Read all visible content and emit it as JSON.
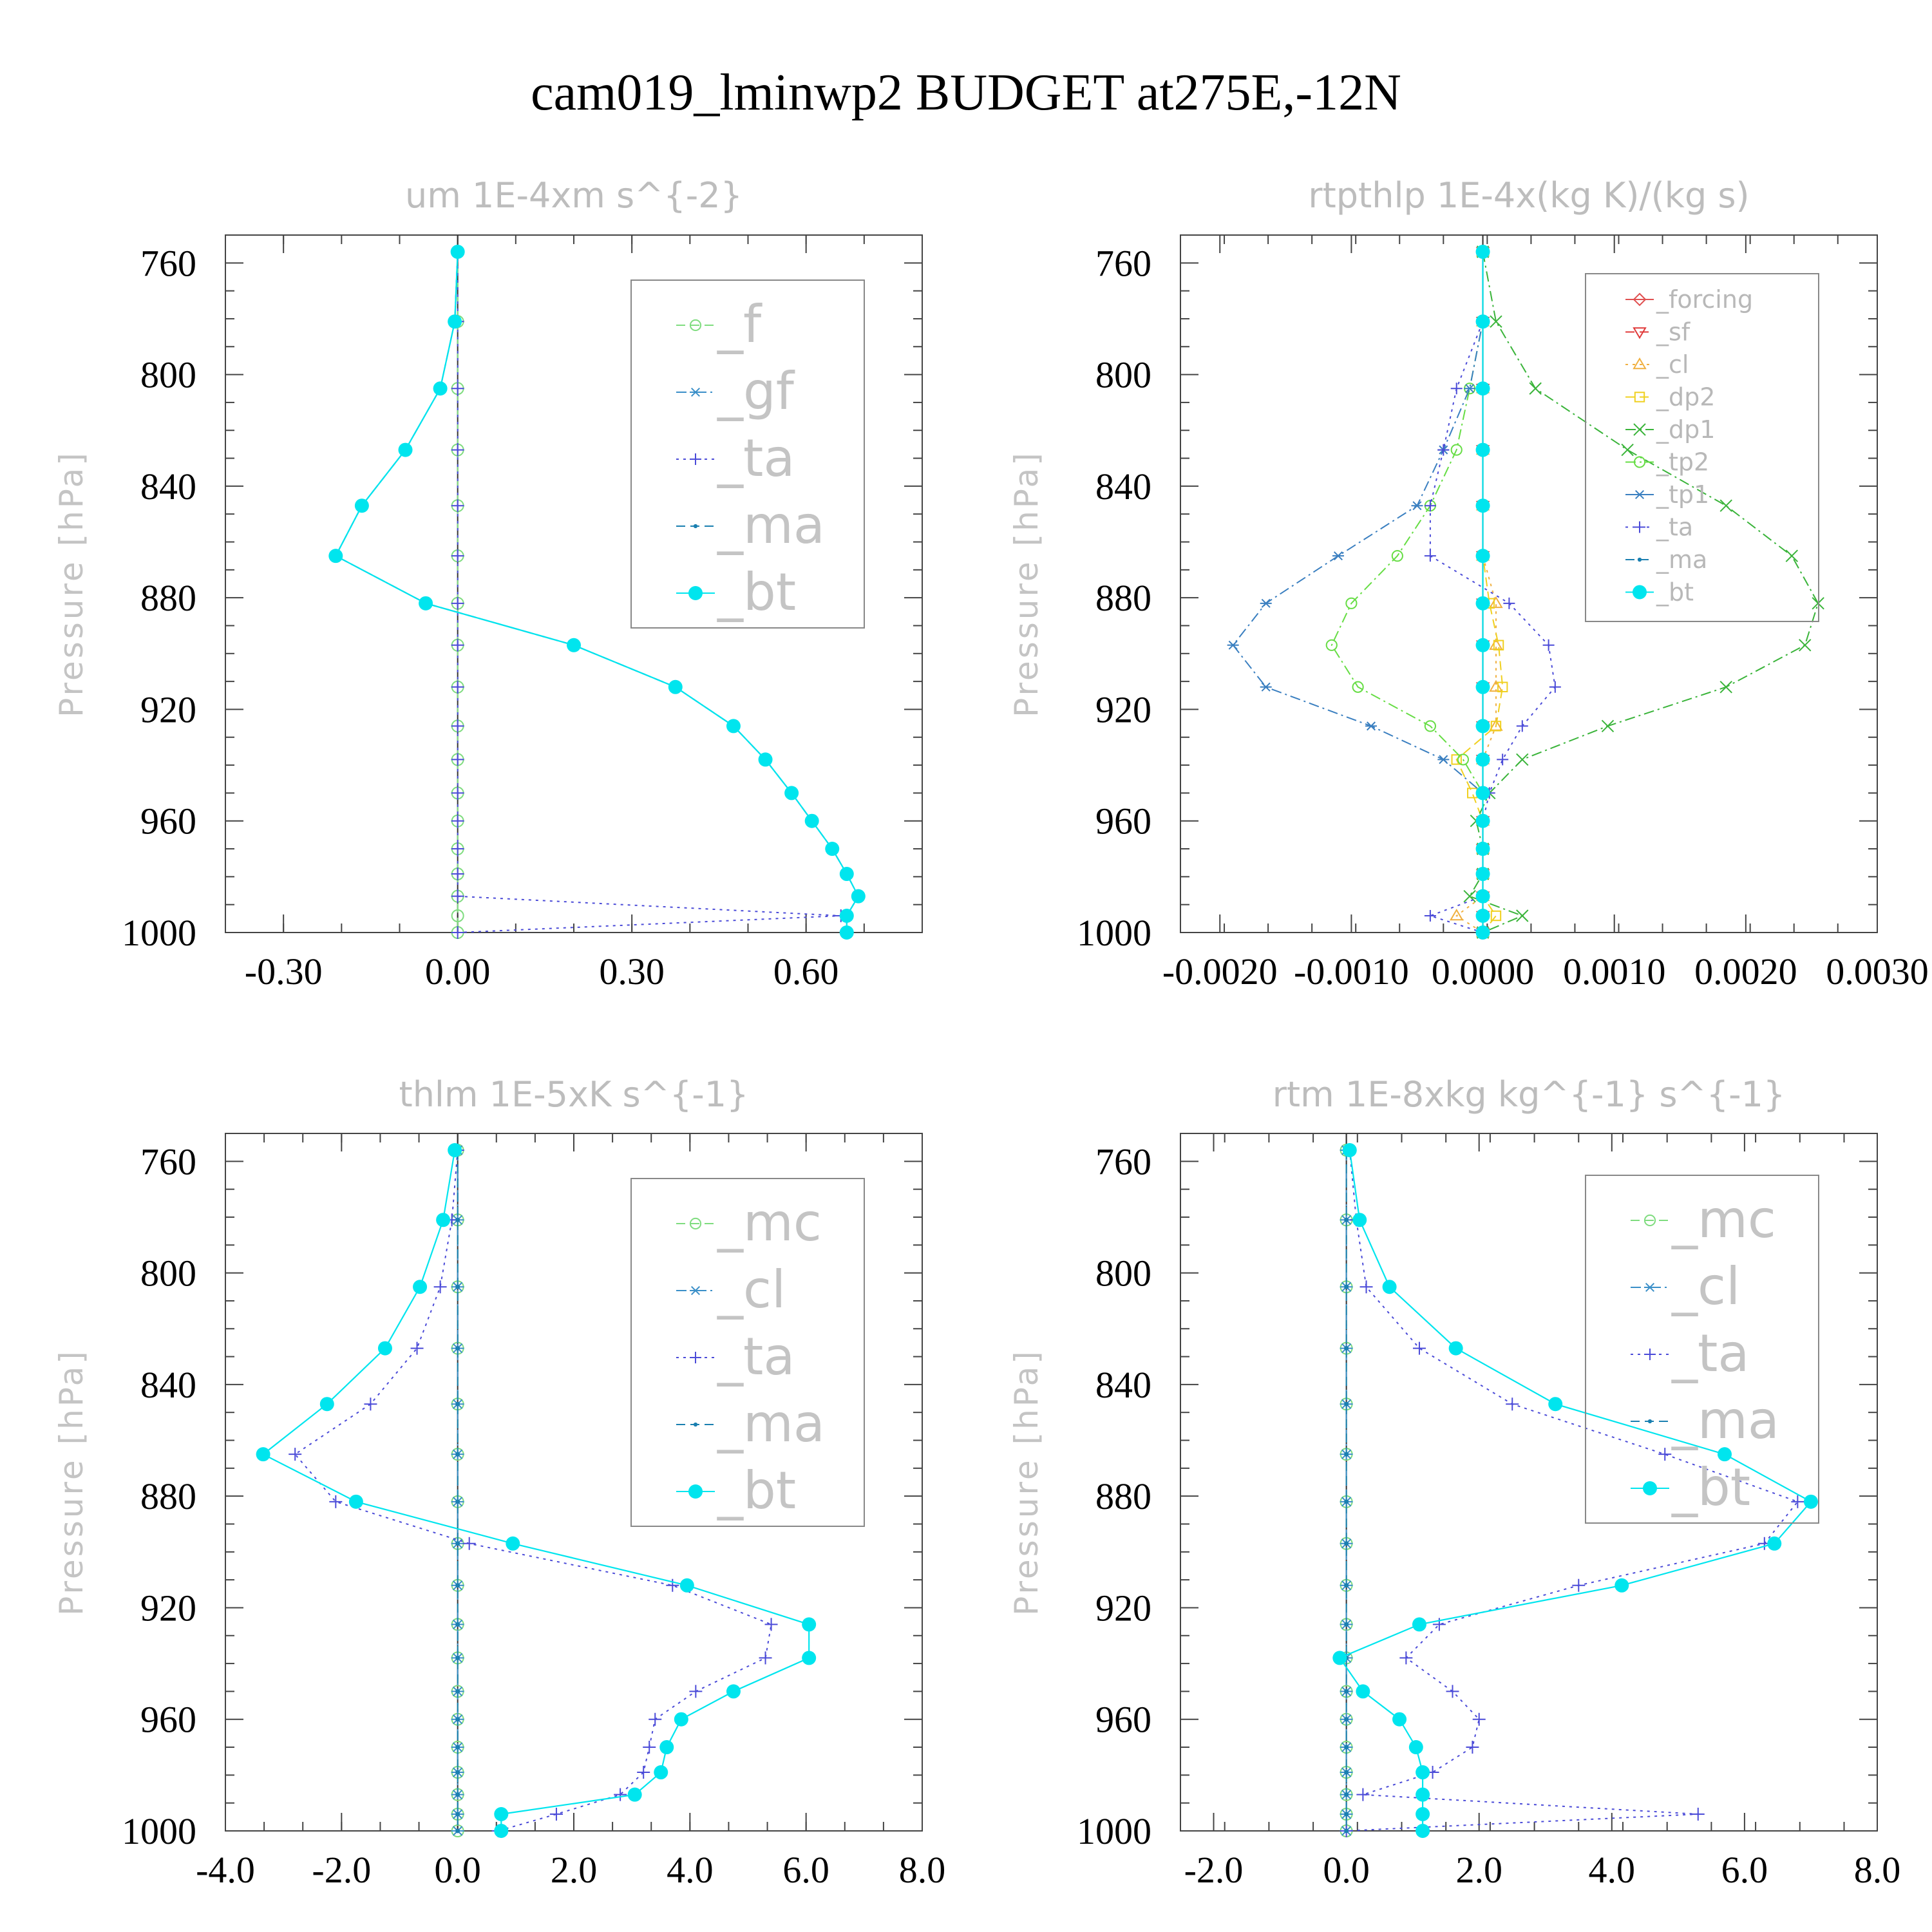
{
  "figure": {
    "title": "cam019_lminwp2  BUDGET at275E,-12N"
  },
  "colors": {
    "_f": "#7fdc7f",
    "_gf": "#3a8fc8",
    "_ta": "#4b4bd8",
    "_ma": "#1a7fb0",
    "_bt": "#00e5ee",
    "_mc": "#7fdc7f",
    "_cl_thermo": "#3a8fc8",
    "_forcing": "#e05050",
    "_sf": "#e03a3a",
    "_cl": "#f0b040",
    "_dp2": "#f0d020",
    "_dp1": "#3ab43a",
    "_tp2": "#66dd44",
    "_tp1": "#3a7fc0"
  },
  "chart_data": [
    {
      "id": "um",
      "type": "line",
      "title": "um   1E-4xm s^{-2}",
      "ylabel": "Pressure [hPa]",
      "xlim": [
        -0.4,
        0.8
      ],
      "ylim": [
        1000,
        750
      ],
      "xticks": [
        -0.3,
        0.0,
        0.3,
        0.6
      ],
      "xtick_labels": [
        "-0.30",
        "0.00",
        "0.30",
        "0.60"
      ],
      "yticks": [
        760,
        800,
        840,
        880,
        920,
        960,
        1000
      ],
      "ytick_labels": [
        "760",
        "800",
        "840",
        "880",
        "920",
        "960",
        "1000"
      ],
      "legend_position": "top-right",
      "levels": [
        756,
        781,
        805,
        827,
        847,
        865,
        882,
        897,
        912,
        926,
        938,
        950,
        960,
        970,
        979,
        987,
        994,
        1000
      ],
      "series": [
        {
          "name": "_f",
          "marker": "circle-open",
          "dash": "dash",
          "values": [
            0,
            0,
            0,
            0,
            0,
            0,
            0,
            0,
            0,
            0,
            0,
            0,
            0,
            0,
            0,
            0,
            0,
            0
          ]
        },
        {
          "name": "_gf",
          "marker": "star",
          "dash": "dashdot",
          "values": [
            0,
            -0.005,
            -0.03,
            -0.09,
            -0.165,
            -0.21,
            -0.055,
            0.2,
            0.375,
            0.475,
            0.53,
            0.575,
            0.61,
            0.645,
            0.67,
            0.69,
            0.67,
            0.67
          ]
        },
        {
          "name": "_ta",
          "marker": "plus",
          "dash": "dot",
          "values": [
            0,
            0,
            0,
            0,
            0,
            0,
            0,
            0,
            0,
            0,
            0,
            0,
            0,
            0,
            0,
            0,
            0.66,
            0
          ]
        },
        {
          "name": "_ma",
          "marker": "dot",
          "dash": "dash",
          "values": [
            0,
            -0.005,
            -0.03,
            -0.09,
            -0.165,
            -0.21,
            -0.055,
            0.2,
            0.375,
            0.475,
            0.53,
            0.575,
            0.61,
            0.645,
            0.67,
            0.69,
            0.67,
            0.67
          ]
        },
        {
          "name": "_bt",
          "marker": "circle-filled",
          "dash": "solid",
          "values": [
            0,
            -0.005,
            -0.03,
            -0.09,
            -0.165,
            -0.21,
            -0.055,
            0.2,
            0.375,
            0.475,
            0.53,
            0.575,
            0.61,
            0.645,
            0.67,
            0.69,
            0.67,
            0.67
          ]
        }
      ]
    },
    {
      "id": "rtpthlp",
      "type": "line",
      "title": "rtpthlp   1E-4x(kg K)/(kg s)",
      "ylabel": "Pressure [hPa]",
      "xlim": [
        -0.0023,
        0.003
      ],
      "ylim": [
        1000,
        750
      ],
      "xticks": [
        -0.002,
        -0.001,
        0.0,
        0.001,
        0.002,
        0.003
      ],
      "xtick_labels": [
        "-0.0020",
        "-0.0010",
        "0.0000",
        "0.0010",
        "0.0020",
        "0.0030"
      ],
      "yticks": [
        760,
        800,
        840,
        880,
        920,
        960,
        1000
      ],
      "ytick_labels": [
        "760",
        "800",
        "840",
        "880",
        "920",
        "960",
        "1000"
      ],
      "legend_position": "top-right",
      "levels": [
        756,
        781,
        805,
        827,
        847,
        865,
        882,
        897,
        912,
        926,
        938,
        950,
        960,
        970,
        979,
        987,
        994,
        1000
      ],
      "series": [
        {
          "name": "_forcing",
          "marker": "diamond",
          "dash": "solid",
          "values": [
            0,
            0,
            0,
            0,
            0,
            0,
            0,
            0,
            0,
            0,
            0,
            0,
            0,
            0,
            0,
            0,
            0,
            0
          ]
        },
        {
          "name": "_sf",
          "marker": "triangle-down",
          "dash": "dash",
          "values": [
            0,
            0,
            0,
            0,
            0,
            0,
            0,
            0,
            0,
            0,
            0,
            0,
            0,
            0,
            0,
            0,
            0,
            0
          ]
        },
        {
          "name": "_cl",
          "marker": "triangle-up",
          "dash": "dot",
          "values": [
            0,
            0,
            0,
            0,
            0,
            0,
            0.0001,
            0.0001,
            0.0001,
            0.0001,
            0,
            0,
            0,
            0,
            0,
            0,
            -0.0002,
            0
          ]
        },
        {
          "name": "_dp2",
          "marker": "square-open",
          "dash": "dash",
          "values": [
            0,
            0,
            0,
            0,
            0,
            0,
            5e-05,
            0.00012,
            0.00015,
            0.0001,
            -0.0002,
            -8e-05,
            0,
            0,
            0,
            0,
            0.0001,
            0
          ]
        },
        {
          "name": "_dp1",
          "marker": "x",
          "dash": "dashdot",
          "values": [
            0,
            0.0001,
            0.0004,
            0.0011,
            0.00185,
            0.00235,
            0.00255,
            0.00245,
            0.00185,
            0.00095,
            0.0003,
            5e-05,
            -5e-05,
            0,
            0,
            -0.0001,
            0.0003,
            0
          ]
        },
        {
          "name": "_tp2",
          "marker": "circle-open",
          "dash": "dashdot",
          "values": [
            0,
            0,
            -0.0001,
            -0.0002,
            -0.0004,
            -0.00065,
            -0.001,
            -0.00115,
            -0.00095,
            -0.0004,
            -0.00015,
            0,
            0,
            0,
            0,
            0,
            0,
            0
          ]
        },
        {
          "name": "_tp1",
          "marker": "star",
          "dash": "dashdot",
          "values": [
            0,
            0,
            -0.0001,
            -0.0003,
            -0.0005,
            -0.0011,
            -0.00165,
            -0.0019,
            -0.00165,
            -0.00085,
            -0.0003,
            0,
            0,
            0,
            0,
            0,
            0,
            0
          ]
        },
        {
          "name": "_ta",
          "marker": "plus",
          "dash": "dot",
          "values": [
            0,
            0,
            -0.0002,
            -0.0003,
            -0.0004,
            -0.0004,
            0.0002,
            0.0005,
            0.00055,
            0.0003,
            0.00015,
            5e-05,
            0,
            0,
            0,
            0,
            -0.0004,
            0
          ]
        },
        {
          "name": "_ma",
          "marker": "dot",
          "dash": "dash",
          "values": [
            0,
            0,
            0,
            0,
            0,
            0,
            0,
            0,
            0,
            0,
            0,
            0,
            0,
            0,
            0,
            0,
            0,
            0
          ]
        },
        {
          "name": "_bt",
          "marker": "circle-filled",
          "dash": "solid",
          "values": [
            0,
            0,
            0,
            0,
            0,
            0,
            0,
            0,
            0,
            0,
            0,
            0,
            0,
            0,
            0,
            0,
            0,
            0
          ]
        }
      ]
    },
    {
      "id": "thlm",
      "type": "line",
      "title": "thlm   1E-5xK s^{-1}",
      "ylabel": "Pressure [hPa]",
      "xlim": [
        -4.0,
        8.0
      ],
      "ylim": [
        1000,
        750
      ],
      "xticks": [
        -4.0,
        -2.0,
        0.0,
        2.0,
        4.0,
        6.0,
        8.0
      ],
      "xtick_labels": [
        "-4.0",
        "-2.0",
        "0.0",
        "2.0",
        "4.0",
        "6.0",
        "8.0"
      ],
      "yticks": [
        760,
        800,
        840,
        880,
        920,
        960,
        1000
      ],
      "ytick_labels": [
        "760",
        "800",
        "840",
        "880",
        "920",
        "960",
        "1000"
      ],
      "legend_position": "top-right",
      "levels": [
        756,
        781,
        805,
        827,
        847,
        865,
        882,
        897,
        912,
        926,
        938,
        950,
        960,
        970,
        979,
        987,
        994,
        1000
      ],
      "series": [
        {
          "name": "_mc",
          "marker": "circle-open",
          "dash": "dash",
          "values": [
            0,
            0,
            0,
            0,
            0,
            0,
            0,
            0,
            0,
            0,
            0,
            0,
            0,
            0,
            0,
            0,
            0,
            0
          ]
        },
        {
          "name": "_cl",
          "marker": "star",
          "dash": "dashdot",
          "values": [
            0,
            0,
            0,
            0,
            0,
            0,
            0,
            0,
            0,
            0,
            0,
            0,
            0,
            0,
            0,
            0,
            0,
            0
          ]
        },
        {
          "name": "_ta",
          "marker": "plus",
          "dash": "dot",
          "values": [
            0,
            -0.1,
            -0.3,
            -0.7,
            -1.5,
            -2.8,
            -2.1,
            0.2,
            3.7,
            5.4,
            5.3,
            4.1,
            3.4,
            3.3,
            3.2,
            2.8,
            1.7,
            0.7
          ]
        },
        {
          "name": "_ma",
          "marker": "dot",
          "dash": "dash",
          "values": [
            0,
            0,
            0,
            0,
            0,
            0,
            0,
            0,
            0,
            0,
            0,
            0,
            0,
            0,
            0,
            0,
            0,
            0
          ]
        },
        {
          "name": "_bt",
          "marker": "circle-filled",
          "dash": "solid",
          "values": [
            -0.05,
            -0.25,
            -0.65,
            -1.25,
            -2.25,
            -3.35,
            -1.75,
            0.95,
            3.95,
            6.05,
            6.05,
            4.75,
            3.85,
            3.6,
            3.5,
            3.05,
            0.75,
            0.75
          ]
        }
      ]
    },
    {
      "id": "rtm",
      "type": "line",
      "title": "rtm   1E-8xkg kg^{-1} s^{-1}",
      "ylabel": "Pressure [hPa]",
      "xlim": [
        -2.5,
        8.0
      ],
      "ylim": [
        1000,
        750
      ],
      "xticks": [
        -2.0,
        0.0,
        2.0,
        4.0,
        6.0,
        8.0
      ],
      "xtick_labels": [
        "-2.0",
        "0.0",
        "2.0",
        "4.0",
        "6.0",
        "8.0"
      ],
      "yticks": [
        760,
        800,
        840,
        880,
        920,
        960,
        1000
      ],
      "ytick_labels": [
        "760",
        "800",
        "840",
        "880",
        "920",
        "960",
        "1000"
      ],
      "legend_position": "top-right",
      "levels": [
        756,
        781,
        805,
        827,
        847,
        865,
        882,
        897,
        912,
        926,
        938,
        950,
        960,
        970,
        979,
        987,
        994,
        1000
      ],
      "series": [
        {
          "name": "_mc",
          "marker": "circle-open",
          "dash": "dash",
          "values": [
            0,
            0,
            0,
            0,
            0,
            0,
            0,
            0,
            0,
            0,
            0,
            0,
            0,
            0,
            0,
            0,
            0,
            0
          ]
        },
        {
          "name": "_cl",
          "marker": "star",
          "dash": "dashdot",
          "values": [
            0,
            0,
            0,
            0,
            0,
            0,
            0,
            0,
            0,
            0,
            0,
            0,
            0,
            0,
            0,
            0,
            0,
            0
          ]
        },
        {
          "name": "_ta",
          "marker": "plus",
          "dash": "dot",
          "values": [
            0.05,
            0.15,
            0.3,
            1.1,
            2.5,
            4.8,
            6.8,
            6.3,
            3.5,
            1.4,
            0.9,
            1.6,
            2.0,
            1.9,
            1.3,
            0.25,
            5.3,
            0
          ]
        },
        {
          "name": "_ma",
          "marker": "dot",
          "dash": "dash",
          "values": [
            0,
            0,
            0,
            0,
            0,
            0,
            0,
            0,
            0,
            0,
            0,
            0,
            0,
            0,
            0,
            0,
            0,
            0
          ]
        },
        {
          "name": "_bt",
          "marker": "circle-filled",
          "dash": "solid",
          "values": [
            0.05,
            0.2,
            0.65,
            1.65,
            3.15,
            5.7,
            7.0,
            6.45,
            4.15,
            1.1,
            -0.1,
            0.25,
            0.8,
            1.05,
            1.15,
            1.15,
            1.15,
            1.15
          ]
        }
      ]
    }
  ]
}
